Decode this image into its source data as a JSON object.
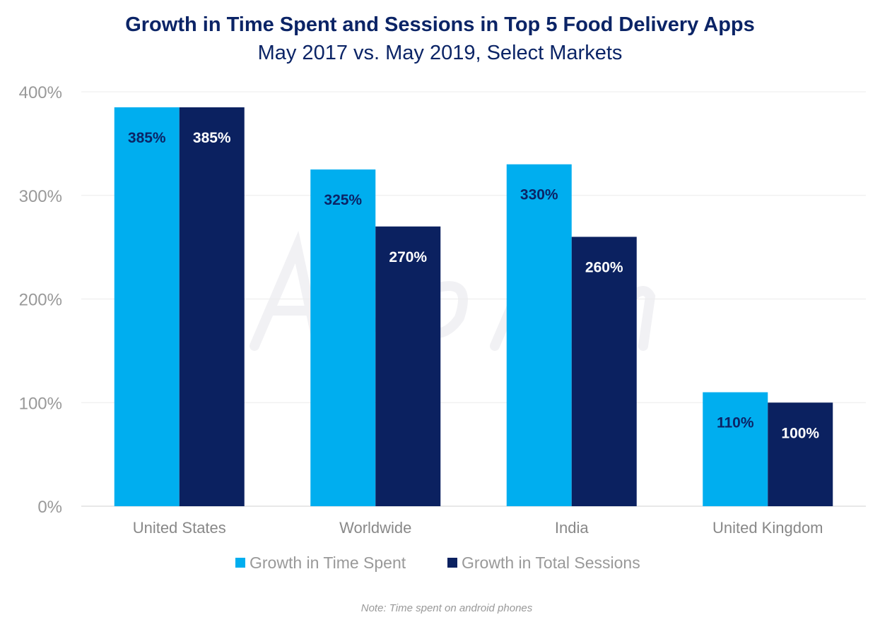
{
  "chart_data": {
    "type": "bar",
    "title": "Growth in Time Spent and Sessions in Top 5 Food Delivery Apps",
    "subtitle": "May 2017 vs. May 2019, Select Markets",
    "categories": [
      "United States",
      "Worldwide",
      "India",
      "United Kingdom"
    ],
    "series": [
      {
        "name": "Growth in Time Spent",
        "color": "#00aeef",
        "label_color": "#0b2466",
        "values": [
          385,
          325,
          330,
          110
        ],
        "labels": [
          "385%",
          "325%",
          "330%",
          "110%"
        ]
      },
      {
        "name": "Growth in Total Sessions",
        "color": "#0b2160",
        "label_color": "#ffffff",
        "values": [
          385,
          270,
          260,
          100
        ],
        "labels": [
          "385%",
          "270%",
          "260%",
          "100%"
        ]
      }
    ],
    "yticks": [
      0,
      100,
      200,
      300,
      400
    ],
    "ytick_labels": [
      "0%",
      "100%",
      "200%",
      "300%",
      "400%"
    ],
    "ylim": [
      0,
      400
    ],
    "xlabel": "",
    "ylabel": "",
    "grid": true,
    "legend_position": "bottom",
    "note": "Note: Time spent on android phones",
    "watermark": "App Annie"
  }
}
